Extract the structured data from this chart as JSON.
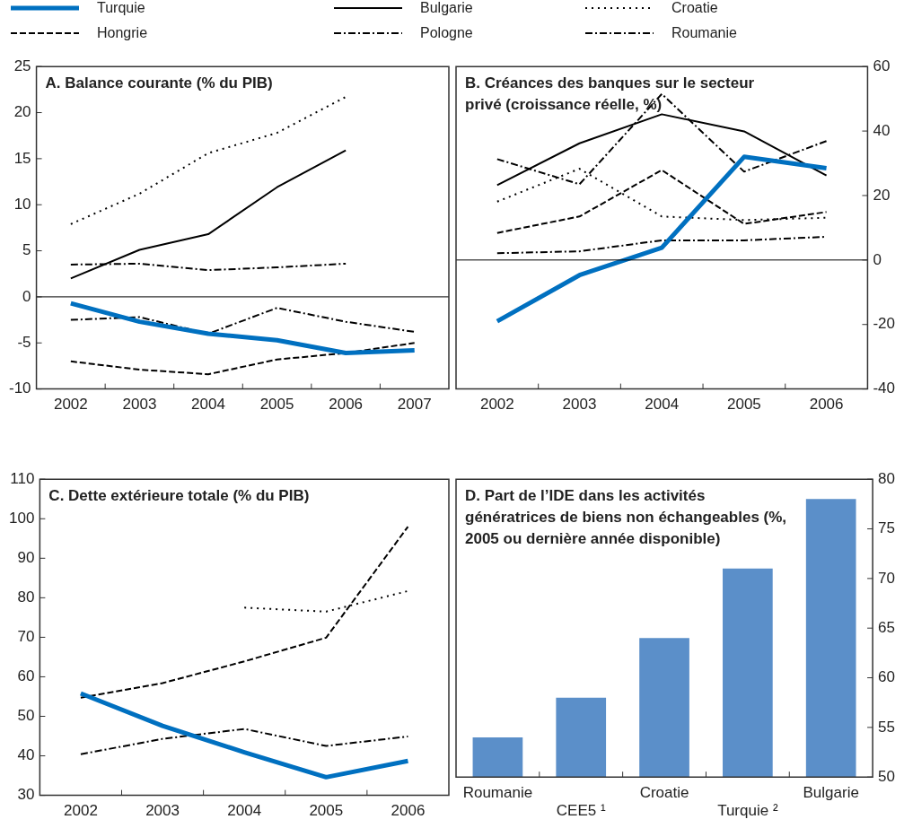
{
  "chart_data": [
    {
      "type": "line",
      "title": "A. Balance courante (% du PIB)",
      "categories": [
        "2002",
        "2003",
        "2004",
        "2005",
        "2006",
        "2007"
      ],
      "ylim": [
        -10,
        25
      ],
      "yticks": [
        -10,
        -5,
        0,
        5,
        10,
        15,
        20,
        25
      ],
      "grid": false,
      "legend": "top",
      "marker": "none",
      "ref_lines": [
        {
          "axis": "y",
          "value": 0,
          "color": "#000000"
        }
      ],
      "series": [
        {
          "name": "Turquie",
          "color": "#0070c0",
          "line_style": "solid",
          "values": [
            -0.7,
            -2.7,
            -4.0,
            -4.7,
            -6.1,
            -5.8
          ]
        },
        {
          "name": "Bulgarie",
          "color": "#000000",
          "line_style": "solid",
          "values": [
            2.0,
            5.1,
            6.8,
            11.9,
            15.9,
            null
          ]
        },
        {
          "name": "Croatie",
          "color": "#000000",
          "line_style": "dotted",
          "values": [
            7.9,
            11.2,
            15.6,
            17.8,
            21.7,
            null
          ]
        },
        {
          "name": "Hongrie",
          "color": "#000000",
          "line_style": "dashed",
          "values": [
            -7.0,
            -7.9,
            -8.4,
            -6.8,
            -6.1,
            -5.0
          ]
        },
        {
          "name": "Pologne",
          "color": "#000000",
          "line_style": "dashdot",
          "values": [
            3.5,
            3.6,
            2.9,
            3.2,
            3.6,
            null
          ]
        },
        {
          "name": "Roumanie",
          "color": "#000000",
          "line_style": "dashdot",
          "values": [
            -2.5,
            -2.2,
            -4.0,
            -1.2,
            -2.7,
            -3.8
          ]
        }
      ]
    },
    {
      "type": "line",
      "title": "B. Créances des banques sur le secteur privé (croissance réelle, %)",
      "categories": [
        "2002",
        "2003",
        "2004",
        "2005",
        "2006"
      ],
      "y2lim": [
        -40,
        60
      ],
      "y2ticks": [
        -40,
        -20,
        0,
        20,
        40,
        60
      ],
      "grid": false,
      "marker": "none",
      "ref_lines": [
        {
          "axis": "y2",
          "value": 0,
          "color": "#000000"
        }
      ],
      "series": [
        {
          "name": "Turquie",
          "color": "#0070c0",
          "line_style": "solid",
          "axis": "y2",
          "values": [
            -19,
            -4.7,
            3.8,
            32,
            28.5
          ]
        },
        {
          "name": "Bulgarie",
          "color": "#000000",
          "line_style": "solid",
          "axis": "y2",
          "values": [
            23.2,
            36.2,
            45.2,
            39.9,
            26.2
          ]
        },
        {
          "name": "Croatie",
          "color": "#000000",
          "line_style": "dotted",
          "axis": "y2",
          "values": [
            18.1,
            28.3,
            13.5,
            12.4,
            13.1
          ]
        },
        {
          "name": "Hongrie",
          "color": "#000000",
          "line_style": "dashed",
          "axis": "y2",
          "values": [
            8.4,
            13.5,
            27.9,
            11.2,
            14.9
          ]
        },
        {
          "name": "Pologne",
          "color": "#000000",
          "line_style": "dashdot",
          "axis": "y2",
          "values": [
            2.1,
            2.7,
            6.1,
            6.1,
            7.2
          ]
        },
        {
          "name": "Roumanie",
          "color": "#000000",
          "line_style": "dashdot",
          "axis": "y2",
          "values": [
            31.3,
            23.5,
            51.5,
            27.4,
            36.9
          ]
        }
      ]
    },
    {
      "type": "line",
      "title": "C. Dette extérieure totale (% du PIB)",
      "categories": [
        "2002",
        "2003",
        "2004",
        "2005",
        "2006"
      ],
      "ylim": [
        30,
        110
      ],
      "yticks": [
        30,
        40,
        50,
        60,
        70,
        80,
        90,
        100,
        110
      ],
      "grid": false,
      "marker": "none",
      "series": [
        {
          "name": "Turquie",
          "color": "#0070c0",
          "line_style": "solid",
          "values": [
            55.8,
            47.6,
            40.9,
            34.6,
            38.7
          ]
        },
        {
          "name": "Croatie",
          "color": "#000000",
          "line_style": "dotted",
          "values": [
            null,
            null,
            77.5,
            76.5,
            81.7
          ]
        },
        {
          "name": "Hongrie",
          "color": "#000000",
          "line_style": "dashed",
          "values": [
            54.7,
            58.4,
            63.9,
            69.9,
            98
          ]
        },
        {
          "name": "Pologne",
          "color": "#000000",
          "line_style": "dashdot",
          "values": [
            40.4,
            44.3,
            46.8,
            42.5,
            44.9
          ]
        }
      ]
    },
    {
      "type": "bar",
      "title": "D. Part de l’IDE dans les activités génératrices de biens non échangeables (%, 2005 ou dernière année disponible)",
      "categories": [
        "Roumanie",
        "CEE5 ¹",
        "Croatie",
        "Turquie ²",
        "Bulgarie"
      ],
      "y2lim": [
        50,
        80
      ],
      "y2ticks": [
        50,
        55,
        60,
        65,
        70,
        75,
        80
      ],
      "grid": false,
      "series": [
        {
          "color": "#5b8fc9",
          "axis": "y2",
          "values": [
            54,
            58,
            64,
            71,
            78
          ]
        }
      ]
    }
  ]
}
